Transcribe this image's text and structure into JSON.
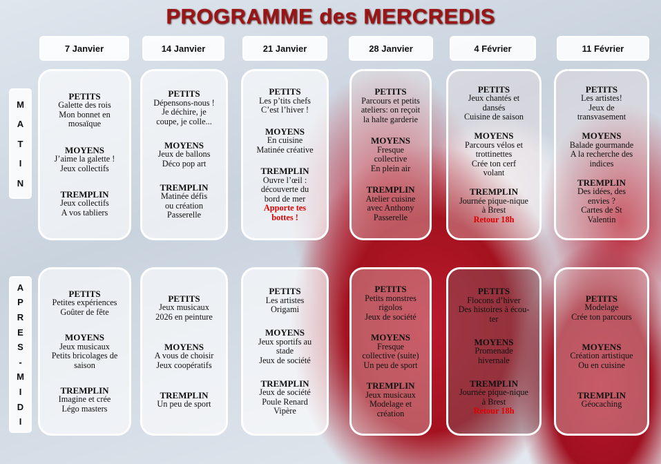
{
  "title": "PROGRAMME des MERCREDIS",
  "periods": {
    "matin": "MATIN",
    "apres_midi": "APRES-MIDI"
  },
  "colors": {
    "title": "#9a1616",
    "highlight": "#e00000"
  },
  "days": [
    {
      "date": "7 Janvier",
      "matin": [
        {
          "label": "PETITS",
          "lines": [
            "Galette des rois",
            "Mon bonnet en",
            "mosaïque"
          ]
        },
        {
          "label": "MOYENS",
          "lines": [
            "J’aime la galette !",
            "Jeux collectifs"
          ]
        },
        {
          "label": "TREMPLIN",
          "lines": [
            "Jeux collectifs",
            "A vos tabliers"
          ]
        }
      ],
      "apres_midi": [
        {
          "label": "PETITS",
          "lines": [
            "Petites expériences",
            "Goûter de fête"
          ]
        },
        {
          "label": "MOYENS",
          "lines": [
            "Jeux musicaux",
            "Petits bricolages de",
            "saison"
          ]
        },
        {
          "label": "TREMPLIN",
          "lines": [
            "Imagine et crée",
            "Légo masters"
          ]
        }
      ]
    },
    {
      "date": "14 Janvier",
      "matin": [
        {
          "label": "PETITS",
          "lines": [
            "Dépensons-nous !",
            "Je déchire, je",
            "coupe, je colle..."
          ]
        },
        {
          "label": "MOYENS",
          "lines": [
            "Jeux de ballons",
            "Déco pop art"
          ]
        },
        {
          "label": "TREMPLIN",
          "lines": [
            "Matinée défis",
            "ou création",
            "Passerelle"
          ]
        }
      ],
      "apres_midi": [
        {
          "label": "PETITS",
          "lines": [
            "Jeux musicaux",
            "2026 en peinture"
          ]
        },
        {
          "label": "MOYENS",
          "lines": [
            "A vous de choisir",
            "Jeux coopératifs"
          ]
        },
        {
          "label": "TREMPLIN",
          "lines": [
            "Un peu de sport"
          ]
        }
      ]
    },
    {
      "date": "21 Janvier",
      "matin": [
        {
          "label": "PETITS",
          "lines": [
            "Les p’tits chefs",
            "C’est l’hiver !"
          ]
        },
        {
          "label": "MOYENS",
          "lines": [
            "En cuisine",
            "Matinée créative"
          ]
        },
        {
          "label": "TREMPLIN",
          "lines": [
            "Ouvre l’œil :",
            "découverte du",
            "bord de mer"
          ],
          "highlight": [
            "Apporte tes",
            "bottes !"
          ]
        }
      ],
      "apres_midi": [
        {
          "label": "PETITS",
          "lines": [
            "Les artistes",
            "Origami"
          ]
        },
        {
          "label": "MOYENS",
          "lines": [
            "Jeux sportifs au",
            "stade",
            "Jeux de société"
          ]
        },
        {
          "label": "TREMPLIN",
          "lines": [
            "Jeux de société",
            "Poule Renard",
            "Vipère"
          ]
        }
      ]
    },
    {
      "date": "28 Janvier",
      "matin": [
        {
          "label": "PETITS",
          "lines": [
            "Parcours et petits",
            "ateliers: on reçoit",
            "la halte garderie"
          ]
        },
        {
          "label": "MOYENS",
          "lines": [
            "Fresque",
            "collective",
            "En plein air"
          ]
        },
        {
          "label": "TREMPLIN",
          "lines": [
            "Atelier cuisine",
            "avec Anthony",
            "Passerelle"
          ]
        }
      ],
      "apres_midi": [
        {
          "label": "PETITS",
          "lines": [
            "Petits monstres",
            "rigolos",
            "Jeux de société"
          ]
        },
        {
          "label": "MOYENS",
          "lines": [
            "Fresque",
            "collective (suite)",
            "Un peu de sport"
          ]
        },
        {
          "label": "TREMPLIN",
          "lines": [
            "Jeux musicaux",
            "Modelage et",
            "création"
          ]
        }
      ]
    },
    {
      "date": "4 Février",
      "matin": [
        {
          "label": "PETITS",
          "lines": [
            "Jeux chantés et",
            "dansés",
            "Cuisine de saison"
          ]
        },
        {
          "label": "MOYENS",
          "lines": [
            "Parcours vélos et",
            "trottinettes",
            "Crée ton cerf",
            "volant"
          ]
        },
        {
          "label": "TREMPLIN",
          "lines": [
            "Journée pique-nique",
            "à Brest"
          ],
          "highlight": [
            "Retour 18h"
          ]
        }
      ],
      "apres_midi": [
        {
          "label": "PETITS",
          "lines": [
            "Flocons d’hiver",
            "Des histoires à écou-",
            "ter"
          ]
        },
        {
          "label": "MOYENS",
          "lines": [
            "Promenade",
            "hivernale"
          ]
        },
        {
          "label": "TREMPLIN",
          "lines": [
            "Journée pique-nique",
            "à Brest"
          ],
          "highlight": [
            "Retour 18h"
          ]
        }
      ]
    },
    {
      "date": "11 Février",
      "matin": [
        {
          "label": "PETITS",
          "lines": [
            "Les artistes!",
            "Jeux de",
            "transvasement"
          ]
        },
        {
          "label": "MOYENS",
          "lines": [
            "Balade gourmande",
            "A la recherche des",
            "indices"
          ]
        },
        {
          "label": "TREMPLIN",
          "lines": [
            "Des idées, des",
            "envies ?",
            "Cartes de St",
            "Valentin"
          ]
        }
      ],
      "apres_midi": [
        {
          "label": "PETITS",
          "lines": [
            "Modelage",
            "Crée ton parcours"
          ]
        },
        {
          "label": "MOYENS",
          "lines": [
            "Création artistique",
            "Ou en cuisine"
          ]
        },
        {
          "label": "TREMPLIN",
          "lines": [
            "Géocaching"
          ]
        }
      ]
    }
  ]
}
